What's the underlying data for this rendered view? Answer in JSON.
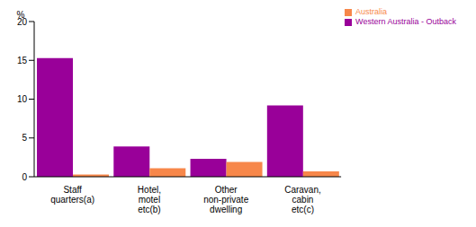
{
  "chart_data": {
    "type": "bar",
    "ylabel": "%",
    "categories": [
      "Staff quarters(a)",
      "Hotel, motel etc(b)",
      "Other non-private dwelling",
      "Caravan, cabin etc(c)"
    ],
    "series": [
      {
        "name": "Western Australia - Outback",
        "color": "#990099",
        "values": [
          15.3,
          3.9,
          2.3,
          9.2
        ]
      },
      {
        "name": "Australia",
        "color": "#f7874a",
        "values": [
          0.3,
          1.1,
          1.9,
          0.7
        ]
      }
    ],
    "ylim": [
      0,
      20
    ],
    "yticks": [
      0,
      5,
      10,
      15,
      20
    ],
    "grid": false,
    "legend": "top-right"
  }
}
